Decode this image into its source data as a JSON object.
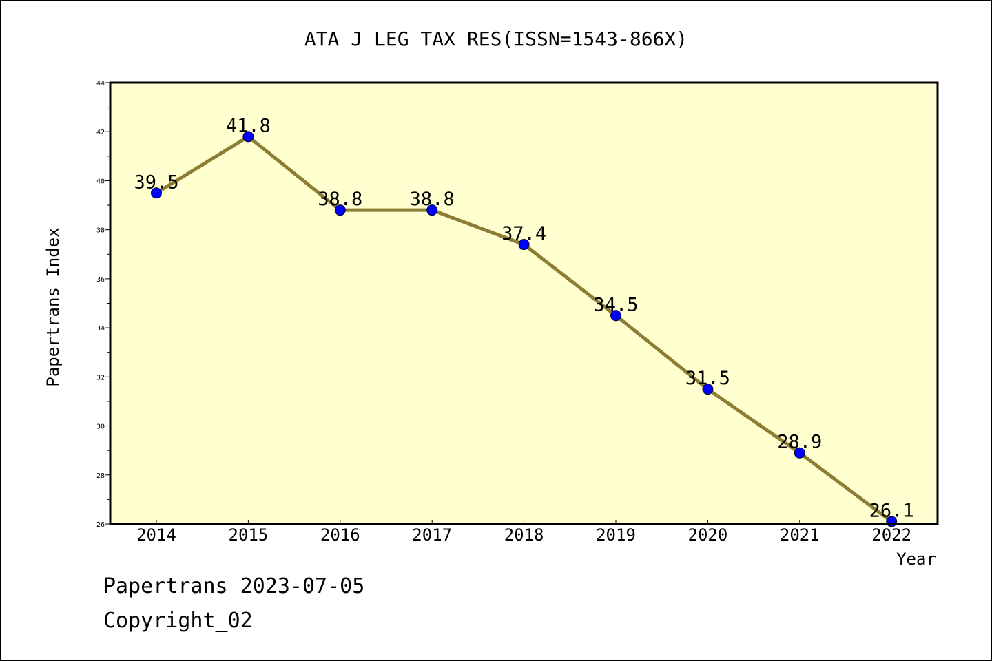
{
  "chart_data": {
    "type": "line",
    "title": "ATA J LEG TAX RES(ISSN=1543-866X)",
    "xlabel": "Year",
    "ylabel": "Papertrans Index",
    "categories": [
      "2014",
      "2015",
      "2016",
      "2017",
      "2018",
      "2019",
      "2020",
      "2021",
      "2022"
    ],
    "values": [
      39.5,
      41.8,
      38.8,
      38.8,
      37.4,
      34.5,
      31.5,
      28.9,
      26.1
    ],
    "data_labels": [
      "39.5",
      "41.8",
      "38.8",
      "38.8",
      "37.4",
      "34.5",
      "31.5",
      "28.9",
      "26.1"
    ],
    "ylim": [
      26,
      44
    ],
    "yticks": [
      26,
      28,
      30,
      32,
      34,
      36,
      38,
      40,
      42,
      44
    ],
    "grid": false,
    "colors": {
      "plot_background": "#ffffd0",
      "line": "#8c7d34",
      "marker": "#0000ff"
    }
  },
  "footer": {
    "line1": "Papertrans 2023-07-05",
    "line2": "Copyright_02"
  }
}
